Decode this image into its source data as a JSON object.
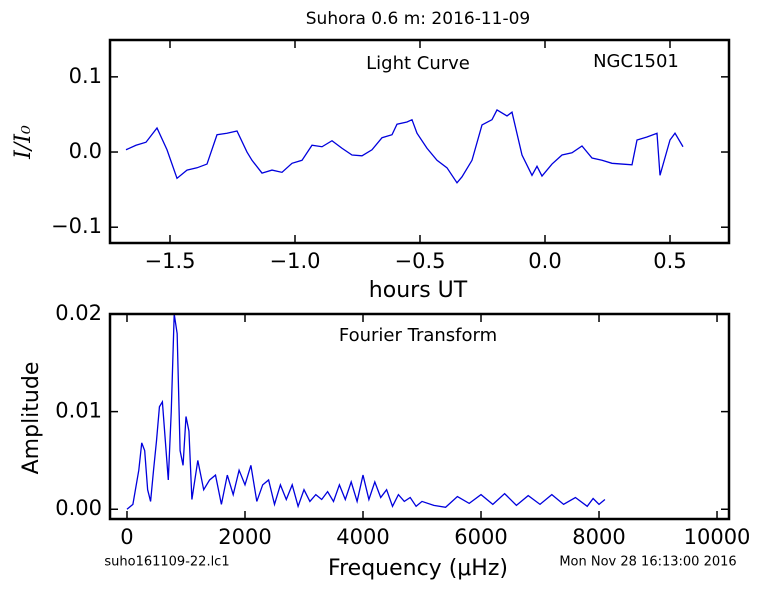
{
  "title": "Suhora 0.6 m:  2016-11-09",
  "footnotes": [
    "suho161109-22.lc1",
    "Mon Nov 28 16:13:00 2016"
  ],
  "chart_data": [
    {
      "type": "line",
      "annotations": [
        "Light Curve",
        "NGC1501"
      ],
      "x_label": "hours UT",
      "y_label": "I/I₀",
      "color": "#0000dd",
      "x": [
        -1.676,
        -1.636,
        -1.596,
        -1.552,
        -1.512,
        -1.472,
        -1.432,
        -1.392,
        -1.352,
        -1.312,
        -1.272,
        -1.232,
        -1.192,
        -1.172,
        -1.132,
        -1.092,
        -1.052,
        -1.012,
        -0.972,
        -0.932,
        -0.892,
        -0.852,
        -0.812,
        -0.772,
        -0.732,
        -0.692,
        -0.652,
        -0.612,
        -0.592,
        -0.552,
        -0.532,
        -0.512,
        -0.472,
        -0.432,
        -0.392,
        -0.352,
        -0.332,
        -0.292,
        -0.252,
        -0.212,
        -0.192,
        -0.152,
        -0.132,
        -0.092,
        -0.052,
        -0.032,
        -0.012,
        0.028,
        0.068,
        0.108,
        0.148,
        0.188,
        0.228,
        0.268,
        0.308,
        0.348,
        0.368,
        0.408,
        0.448,
        0.46,
        0.5,
        0.52,
        0.552
      ],
      "values": [
        0.003,
        0.009,
        0.013,
        0.032,
        0.003,
        -0.035,
        -0.024,
        -0.021,
        -0.016,
        0.023,
        0.025,
        0.028,
        0,
        -0.011,
        -0.028,
        -0.024,
        -0.027,
        -0.015,
        -0.011,
        0.009,
        0.007,
        0.015,
        0.005,
        -0.004,
        -0.005,
        0.003,
        0.019,
        0.023,
        0.037,
        0.04,
        0.043,
        0.025,
        0.005,
        -0.011,
        -0.021,
        -0.041,
        -0.033,
        -0.011,
        0.036,
        0.043,
        0.056,
        0.048,
        0.053,
        -0.004,
        -0.031,
        -0.019,
        -0.032,
        -0.016,
        -0.004,
        -0.001,
        0.008,
        -0.008,
        -0.011,
        -0.015,
        -0.016,
        -0.017,
        0.016,
        0.02,
        0.025,
        -0.031,
        0.016,
        0.025,
        0.007
      ],
      "xlim": [
        -1.74,
        0.736
      ],
      "ylim": [
        -0.121,
        0.149
      ],
      "xticks": [
        {
          "value": -1.5,
          "label": "−1.5"
        },
        {
          "value": -1,
          "label": "−1.0"
        },
        {
          "value": -0.5,
          "label": "−0.5"
        },
        {
          "value": 0,
          "label": "0.0"
        },
        0.5
      ],
      "yticks": [
        {
          "value": -0.1,
          "label": "−0.1"
        },
        {
          "value": 0,
          "label": "0.0"
        },
        0.1
      ]
    },
    {
      "type": "line",
      "annotations": [
        "Fourier Transform"
      ],
      "x_label": "Frequency (μHz)",
      "y_label": "Amplitude",
      "color": "#0000dd",
      "x": [
        0,
        100,
        200,
        250,
        300,
        350,
        400,
        450,
        500,
        550,
        600,
        650,
        700,
        750,
        800,
        850,
        900,
        950,
        1000,
        1050,
        1100,
        1200,
        1300,
        1400,
        1500,
        1600,
        1700,
        1800,
        1900,
        2000,
        2100,
        2200,
        2300,
        2400,
        2500,
        2600,
        2700,
        2800,
        2900,
        3000,
        3100,
        3200,
        3300,
        3400,
        3500,
        3600,
        3700,
        3800,
        3900,
        4000,
        4100,
        4200,
        4300,
        4400,
        4500,
        4600,
        4700,
        4800,
        4900,
        5000,
        5200,
        5400,
        5600,
        5800,
        6000,
        6200,
        6400,
        6600,
        6800,
        7000,
        7200,
        7400,
        7600,
        7800,
        7900,
        8000,
        8100
      ],
      "values": [
        0,
        0.0005,
        0.004,
        0.0068,
        0.006,
        0.002,
        0.0008,
        0.004,
        0.007,
        0.0105,
        0.011,
        0.007,
        0.003,
        0.01,
        0.02,
        0.018,
        0.006,
        0.0045,
        0.0095,
        0.008,
        0.001,
        0.005,
        0.002,
        0.003,
        0.0035,
        0.0005,
        0.0035,
        0.0015,
        0.004,
        0.0025,
        0.0045,
        0.0008,
        0.0025,
        0.003,
        0.0005,
        0.0025,
        0.001,
        0.0025,
        0.0003,
        0.002,
        0.0008,
        0.0015,
        0.001,
        0.0018,
        0.0008,
        0.0025,
        0.001,
        0.0028,
        0.0008,
        0.0035,
        0.001,
        0.0028,
        0.0012,
        0.002,
        0.0003,
        0.0015,
        0.0008,
        0.0012,
        0.0003,
        0.0008,
        0.0004,
        0.0002,
        0.0013,
        0.0006,
        0.0015,
        0.0005,
        0.0016,
        0.0004,
        0.0014,
        0.0005,
        0.0015,
        0.0005,
        0.0012,
        0.0003,
        0.0011,
        0.0005,
        0.001
      ],
      "xlim": [
        -288,
        10203
      ],
      "ylim": [
        -0.001,
        0.02
      ],
      "xticks": [
        0,
        2000,
        4000,
        6000,
        8000,
        10000
      ],
      "yticks": [
        {
          "value": 0,
          "label": "0.00"
        },
        0.01,
        0.02
      ]
    }
  ]
}
